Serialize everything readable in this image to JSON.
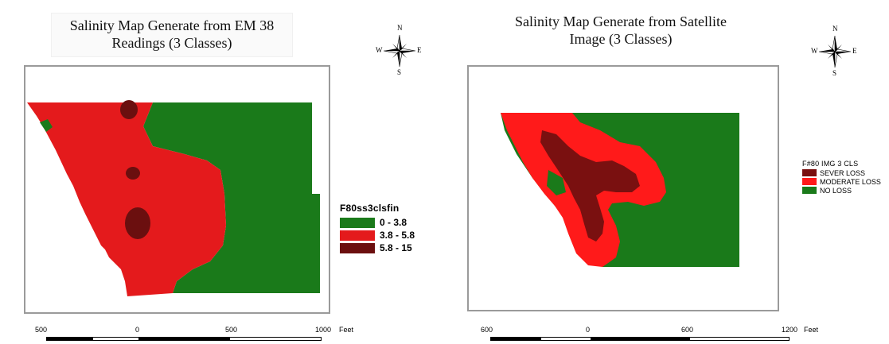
{
  "left_map": {
    "title_line1": "Salinity Map Generate from EM 38",
    "title_line2": "Readings (3 Classes)",
    "legend_title": "F80ss3clsfin",
    "legend": [
      {
        "label": "0 - 3.8",
        "color": "#1a7a1a"
      },
      {
        "label": "3.8 - 5.8",
        "color": "#e41a1c"
      },
      {
        "label": "5.8 - 15",
        "color": "#6b0f0f"
      }
    ],
    "scale_labels": [
      "500",
      "0",
      "500",
      "1000"
    ],
    "scale_unit": "Feet"
  },
  "right_map": {
    "title_line1": "Salinity Map Generate from Satellite",
    "title_line2": "Image (3 Classes)",
    "legend_title": "F#80 IMG 3 CLS",
    "legend": [
      {
        "label": "SEVER LOSS",
        "color": "#7a1010"
      },
      {
        "label": "MODERATE LOSS",
        "color": "#ff1a1a"
      },
      {
        "label": "NO LOSS",
        "color": "#1a7a1a"
      }
    ],
    "scale_labels": [
      "600",
      "0",
      "600",
      "1200"
    ],
    "scale_unit": "Feet"
  },
  "compass": {
    "n": "N",
    "s": "S",
    "e": "E",
    "w": "W"
  },
  "colors": {
    "green": "#1a7a1a",
    "red": "#e41a1c",
    "dark": "#6b0f0f",
    "bright_red": "#ff1a1a"
  }
}
